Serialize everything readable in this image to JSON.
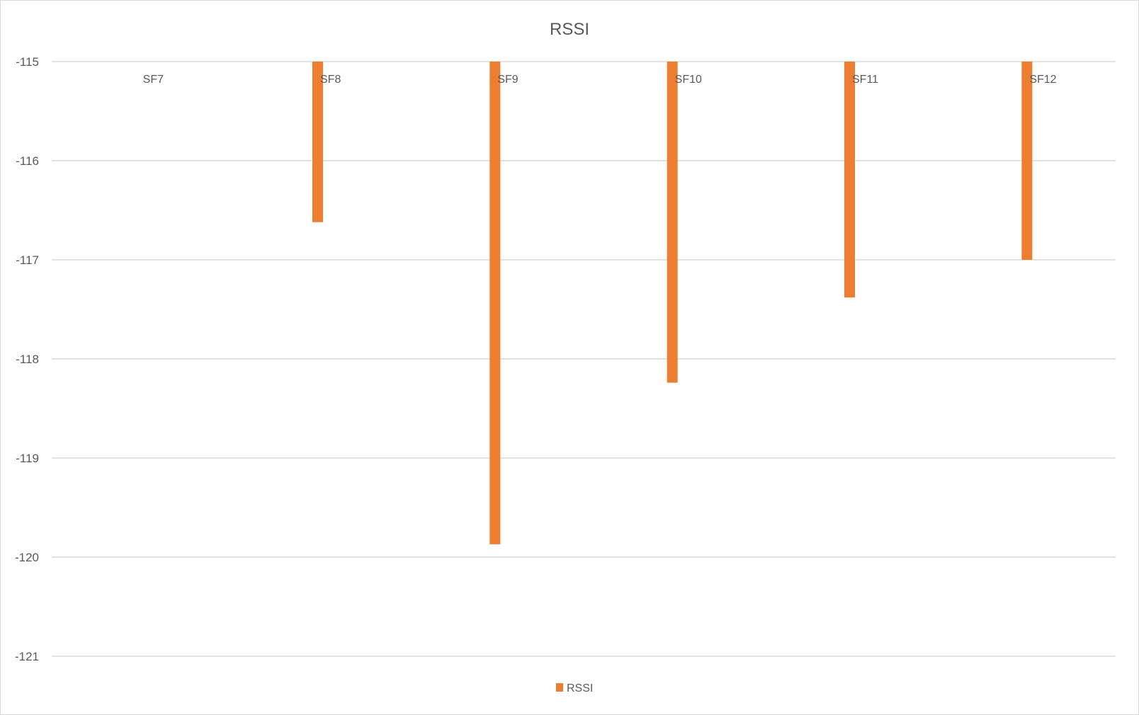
{
  "chart_data": {
    "type": "bar",
    "title": "RSSI",
    "categories": [
      "SF7",
      "SF8",
      "SF9",
      "SF10",
      "SF11",
      "SF12"
    ],
    "series": [
      {
        "name": "RSSI",
        "color": "#ED7D31",
        "values": [
          -115,
          -116.62,
          -119.87,
          -118.24,
          -117.38,
          -117.0
        ]
      }
    ],
    "ylim": [
      -121,
      -115
    ],
    "yticks": [
      "-115",
      "-116",
      "-117",
      "-118",
      "-119",
      "-120",
      "-121"
    ],
    "ytick_values": [
      -115,
      -116,
      -117,
      -118,
      -119,
      -120,
      -121
    ],
    "xlabel": "",
    "ylabel": "",
    "grid": true,
    "legend": {
      "position": "bottom",
      "entries": [
        "RSSI"
      ]
    },
    "colors": {
      "text": "#595959",
      "grid": "#d9d9d9"
    }
  }
}
